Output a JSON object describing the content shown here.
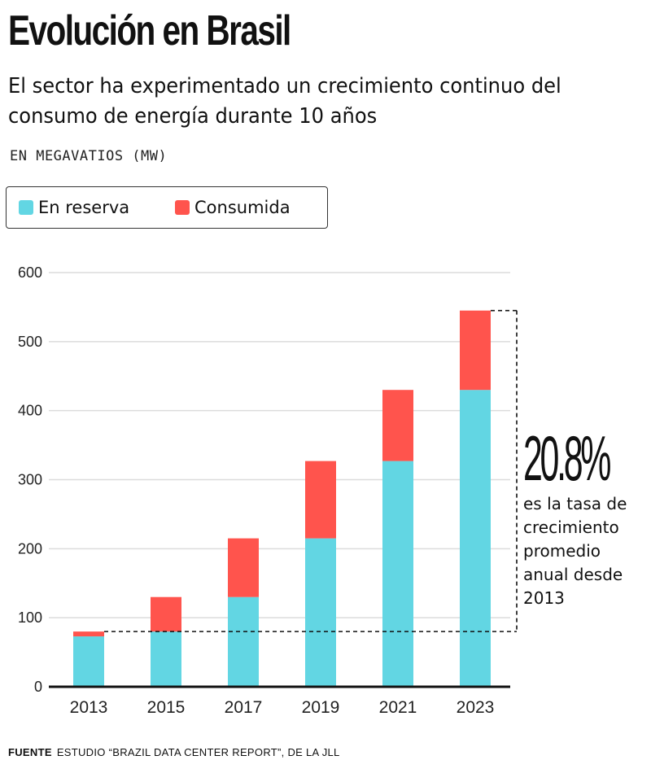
{
  "header": {
    "title": "Evolución en Brasil",
    "subtitle_line1": "El sector ha experimentado un crecimiento continuo del",
    "subtitle_line2": "consumo de energía durante 10 años",
    "units": "EN MEGAVATIOS (MW)"
  },
  "legend": {
    "items": [
      {
        "label": "En reserva",
        "color": "#62D6E3"
      },
      {
        "label": "Consumida",
        "color": "#FF544D"
      }
    ]
  },
  "annotation": {
    "value": "20.8%",
    "text_lines": [
      "es la tasa de",
      "crecimiento",
      "promedio",
      "anual desde",
      "2013"
    ]
  },
  "source": {
    "label": "FUENTE",
    "text": "ESTUDIO “BRAZIL DATA CENTER REPORT”, DE LA JLL"
  },
  "chart_data": {
    "type": "bar",
    "stacked": true,
    "title": "Evolución en Brasil",
    "subtitle": "El sector ha experimentado un crecimiento continuo del consumo de energía durante 10 años",
    "xlabel": "",
    "ylabel": "EN MEGAVATIOS (MW)",
    "categories": [
      "2013",
      "2015",
      "2017",
      "2019",
      "2021",
      "2023"
    ],
    "series": [
      {
        "name": "En reserva",
        "color": "#62D6E3",
        "values": [
          73,
          80,
          130,
          215,
          327,
          430
        ]
      },
      {
        "name": "Consumida",
        "color": "#FF544D",
        "values": [
          7,
          50,
          85,
          112,
          103,
          115
        ]
      }
    ],
    "totals": [
      80,
      130,
      215,
      327,
      430,
      545
    ],
    "ylim": [
      0,
      600
    ],
    "yticks": [
      0,
      100,
      200,
      300,
      400,
      500,
      600
    ],
    "grid": true,
    "legend_position": "top-left",
    "reference_line": {
      "from_value": 80,
      "to_value": 545,
      "style": "dashed bracket",
      "label": "20.8% es la tasa de crecimiento promedio anual desde 2013"
    }
  }
}
